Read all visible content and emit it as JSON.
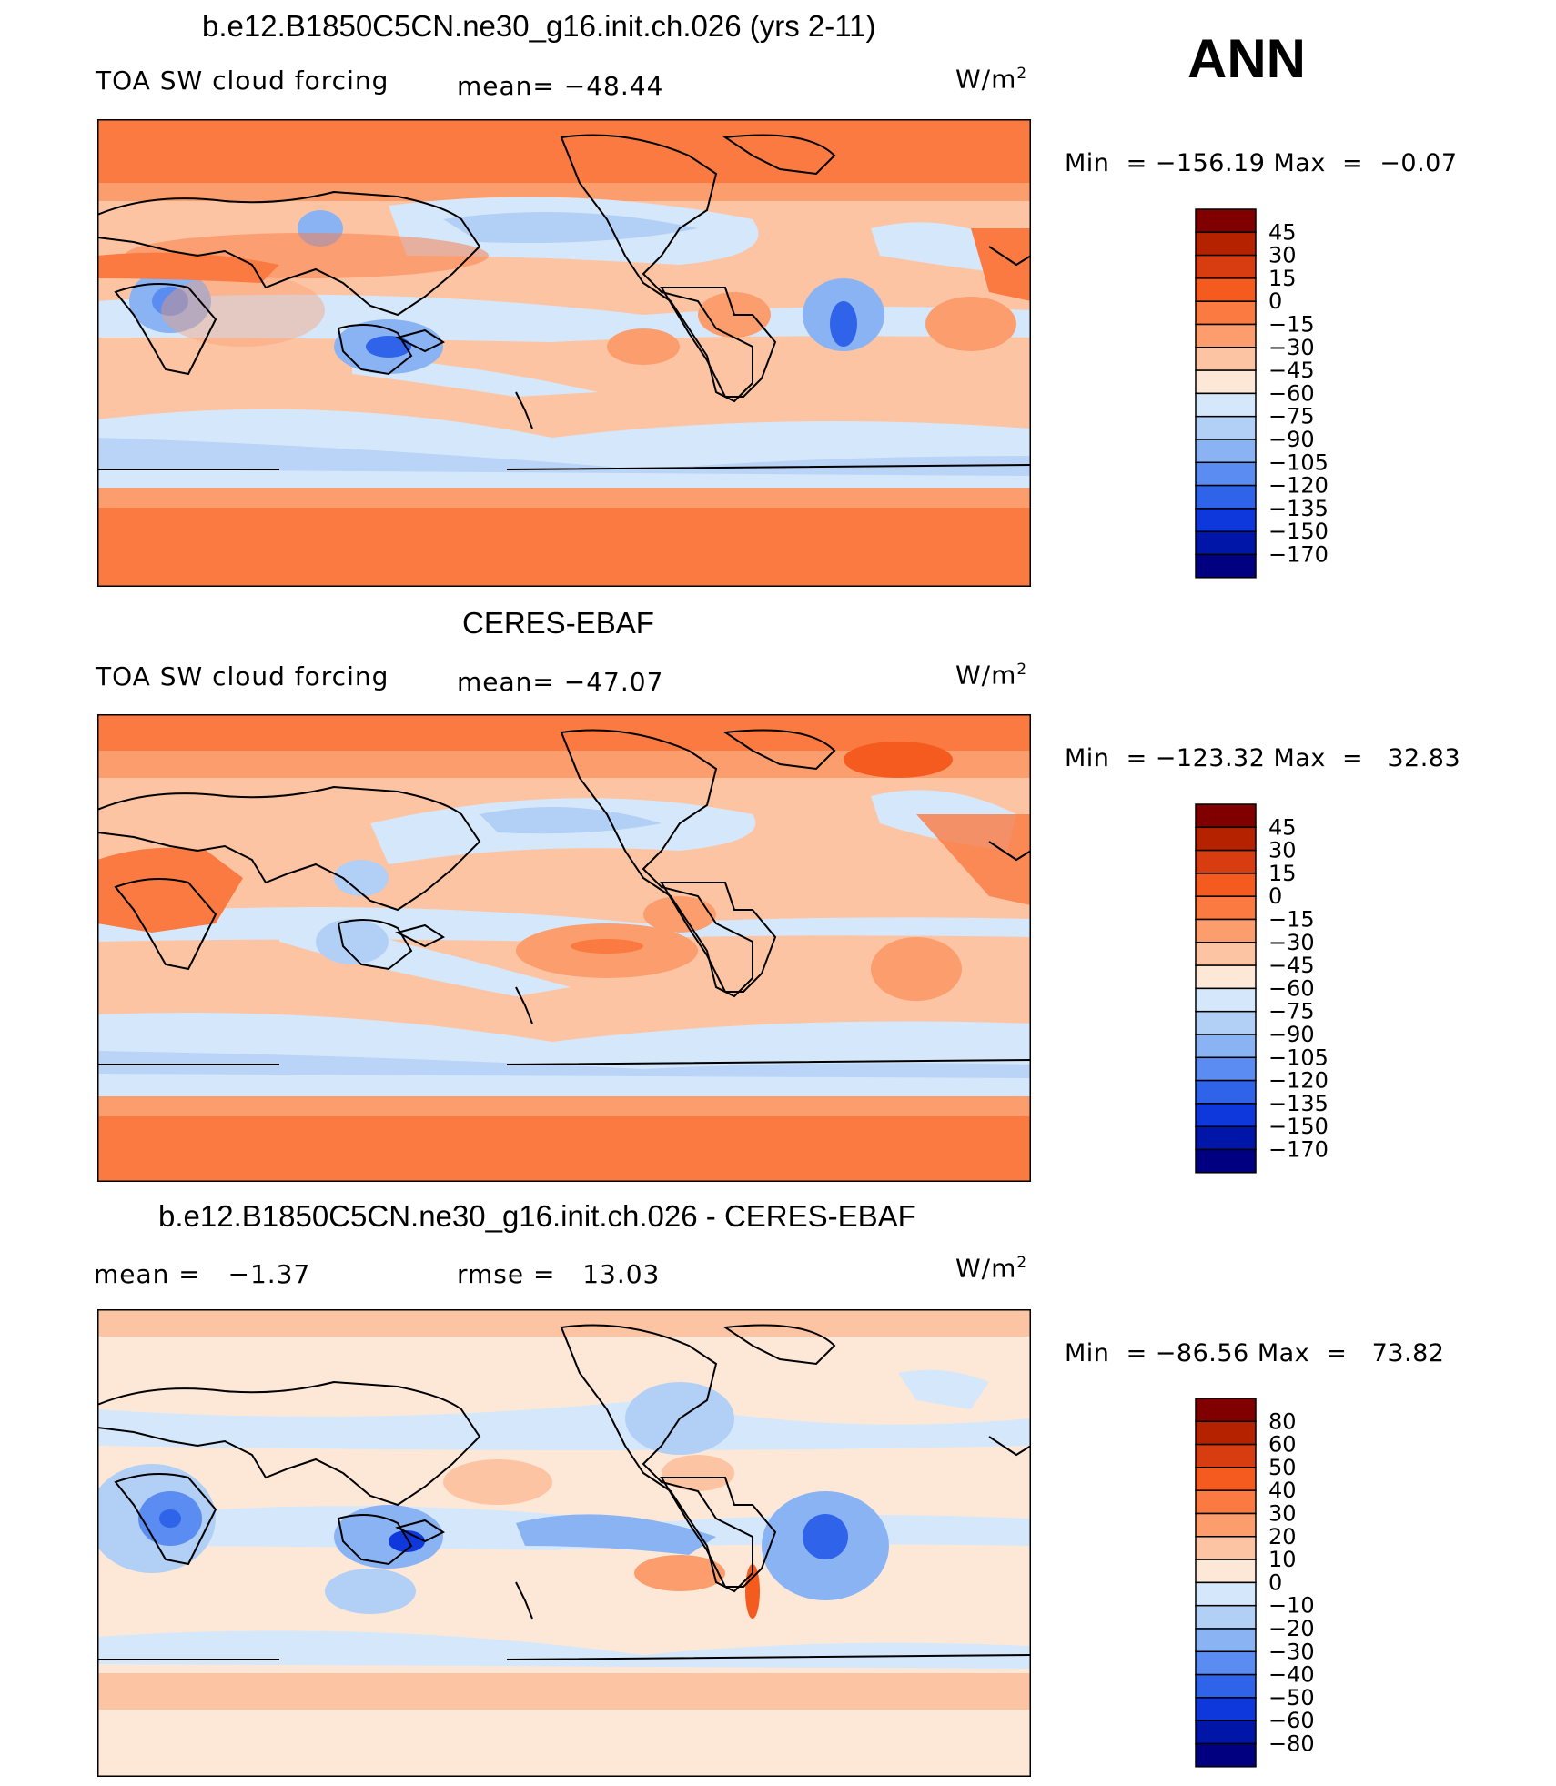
{
  "season": "ANN",
  "chart_data": [
    {
      "type": "heatmap",
      "title": "b.e12.B1850C5CN.ne30_g16.init.ch.026 (yrs 2-11)",
      "variable": "TOA SW cloud forcing",
      "mean_label": "mean=",
      "mean_value": "−48.44",
      "units": "W/m",
      "units_exp": "2",
      "min_label": "Min  =",
      "min_value": "−156.19",
      "max_label": "Max  =",
      "max_value": "−0.07",
      "levels": [
        "45",
        "30",
        "15",
        "0",
        "−15",
        "−30",
        "−45",
        "−60",
        "−75",
        "−90",
        "−105",
        "−120",
        "−135",
        "−150",
        "−170"
      ],
      "colors": [
        "#800000",
        "#b52200",
        "#d83d12",
        "#f55a1e",
        "#fa7a42",
        "#fb9d6d",
        "#fdc4a4",
        "#fde8d8",
        "#d5e7fa",
        "#b2cff6",
        "#8ab3f4",
        "#5a8cf1",
        "#2e63ea",
        "#0e38db",
        "#0016a8",
        "#000080"
      ]
    },
    {
      "type": "heatmap",
      "title": "CERES-EBAF",
      "variable": "TOA SW cloud forcing",
      "mean_label": "mean=",
      "mean_value": "−47.07",
      "units": "W/m",
      "units_exp": "2",
      "min_label": "Min  =",
      "min_value": "−123.32",
      "max_label": "Max  =",
      "max_value": "32.83",
      "levels": [
        "45",
        "30",
        "15",
        "0",
        "−15",
        "−30",
        "−45",
        "−60",
        "−75",
        "−90",
        "−105",
        "−120",
        "−135",
        "−150",
        "−170"
      ],
      "colors": [
        "#800000",
        "#b52200",
        "#d83d12",
        "#f55a1e",
        "#fa7a42",
        "#fb9d6d",
        "#fdc4a4",
        "#fde8d8",
        "#d5e7fa",
        "#b2cff6",
        "#8ab3f4",
        "#5a8cf1",
        "#2e63ea",
        "#0e38db",
        "#0016a8",
        "#000080"
      ]
    },
    {
      "type": "heatmap",
      "title": "b.e12.B1850C5CN.ne30_g16.init.ch.026 - CERES-EBAF",
      "mean_label": "mean =",
      "mean_value": "−1.37",
      "rmse_label": "rmse =",
      "rmse_value": "13.03",
      "units": "W/m",
      "units_exp": "2",
      "min_label": "Min  =",
      "min_value": "−86.56",
      "max_label": "Max  =",
      "max_value": "73.82",
      "levels": [
        "80",
        "60",
        "50",
        "40",
        "30",
        "20",
        "10",
        "0",
        "−10",
        "−20",
        "−30",
        "−40",
        "−50",
        "−60",
        "−80"
      ],
      "colors": [
        "#800000",
        "#b52200",
        "#d83d12",
        "#f55a1e",
        "#fa7a42",
        "#fb9d6d",
        "#fdc4a4",
        "#fde8d8",
        "#d5e7fa",
        "#b2cff6",
        "#8ab3f4",
        "#5a8cf1",
        "#2e63ea",
        "#0e38db",
        "#0016a8",
        "#000080"
      ]
    }
  ]
}
